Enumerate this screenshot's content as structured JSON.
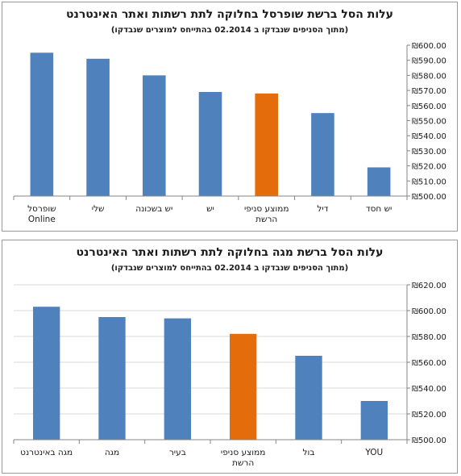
{
  "charts": [
    {
      "title": "עלות הסל ברשת שופרסל בחלוקה לתת רשתות ואתר האינטרנט",
      "subtitle": "(מתוך הסניפים שנבדקו ב 02.2014 בהתייחס למוצרים שנבדקו)"
    },
    {
      "title": "עלות הסל ברשת מגה בחלוקה לתת רשתות ואתר האינטרנט",
      "subtitle": "(מתוך הסניפים שנבדקו ב 02.2014 בהתייחס למוצרים שנבדקו)"
    }
  ],
  "colors": {
    "bar": "#4f81bd",
    "highlight": "#e46c0a",
    "grid": "#d9d9d9",
    "axis": "#868686"
  },
  "chart_data": [
    {
      "type": "bar",
      "categories": [
        "שופרסל Online",
        "שלי",
        "יש בשכונה",
        "יש",
        "ממוצע סניפי הרשת",
        "דיל",
        "יש חסד"
      ],
      "category_lines": [
        [
          "שופרסל",
          "Online"
        ],
        [
          "שלי"
        ],
        [
          "יש בשכונה"
        ],
        [
          "יש"
        ],
        [
          "ממוצע סניפי",
          "הרשת"
        ],
        [
          "דיל"
        ],
        [
          "יש חסד"
        ]
      ],
      "values": [
        595,
        591,
        580,
        569,
        568,
        555,
        519
      ],
      "highlight_index": 4,
      "ylim": [
        500,
        600
      ],
      "ytick_step": 10,
      "yticks": [
        "₪500.00",
        "₪510.00",
        "₪520.00",
        "₪530.00",
        "₪540.00",
        "₪550.00",
        "₪560.00",
        "₪570.00",
        "₪580.00",
        "₪590.00",
        "₪600.00"
      ],
      "y_axis_position": "right",
      "grid": false
    },
    {
      "type": "bar",
      "categories": [
        "מגה באינטרנט",
        "מגה",
        "בעיר",
        "ממוצע סניפי הרשת",
        "בול",
        "YOU"
      ],
      "category_lines": [
        [
          "מגה באינטרנט"
        ],
        [
          "מגה"
        ],
        [
          "בעיר"
        ],
        [
          "ממוצע סניפי",
          "הרשת"
        ],
        [
          "בול"
        ],
        [
          "YOU"
        ]
      ],
      "values": [
        603,
        595,
        594,
        582,
        565,
        530
      ],
      "highlight_index": 3,
      "ylim": [
        500,
        620
      ],
      "ytick_step": 20,
      "yticks": [
        "₪500.00",
        "₪520.00",
        "₪540.00",
        "₪560.00",
        "₪580.00",
        "₪600.00",
        "₪620.00"
      ],
      "y_axis_position": "right",
      "grid": true
    }
  ]
}
